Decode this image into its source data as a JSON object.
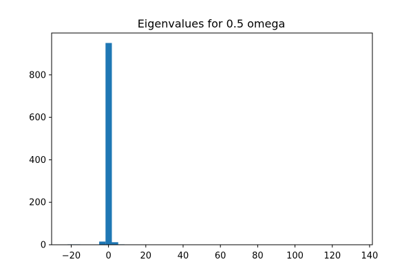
{
  "chart_data": {
    "type": "bar",
    "title": "Eigenvalues for 0.5 omega",
    "xlabel": "",
    "ylabel": "",
    "xlim": [
      -30.5,
      141.5
    ],
    "ylim": [
      0,
      997
    ],
    "x_ticks": [
      -20,
      0,
      20,
      40,
      60,
      80,
      100,
      120,
      140
    ],
    "x_tick_labels": [
      "−20",
      "0",
      "20",
      "40",
      "60",
      "80",
      "100",
      "120",
      "140"
    ],
    "y_ticks": [
      0,
      200,
      400,
      600,
      800
    ],
    "y_tick_labels": [
      "0",
      "200",
      "400",
      "600",
      "800"
    ],
    "bar_color": "#1f77b4",
    "bins": [
      {
        "x0": -22.0,
        "x1": -18.6,
        "value": 2
      },
      {
        "x0": -18.6,
        "x1": -15.2,
        "value": 2
      },
      {
        "x0": -8.4,
        "x1": -5.0,
        "value": 1
      },
      {
        "x0": -5.0,
        "x1": -1.6,
        "value": 15
      },
      {
        "x0": -1.6,
        "x1": 1.8,
        "value": 950
      },
      {
        "x0": 1.8,
        "x1": 5.2,
        "value": 12
      },
      {
        "x0": 5.2,
        "x1": 8.6,
        "value": 2
      },
      {
        "x0": 128.0,
        "x1": 131.4,
        "value": 1
      },
      {
        "x0": 131.4,
        "x1": 134.8,
        "value": 1
      }
    ],
    "grid": false,
    "legend": "none"
  }
}
